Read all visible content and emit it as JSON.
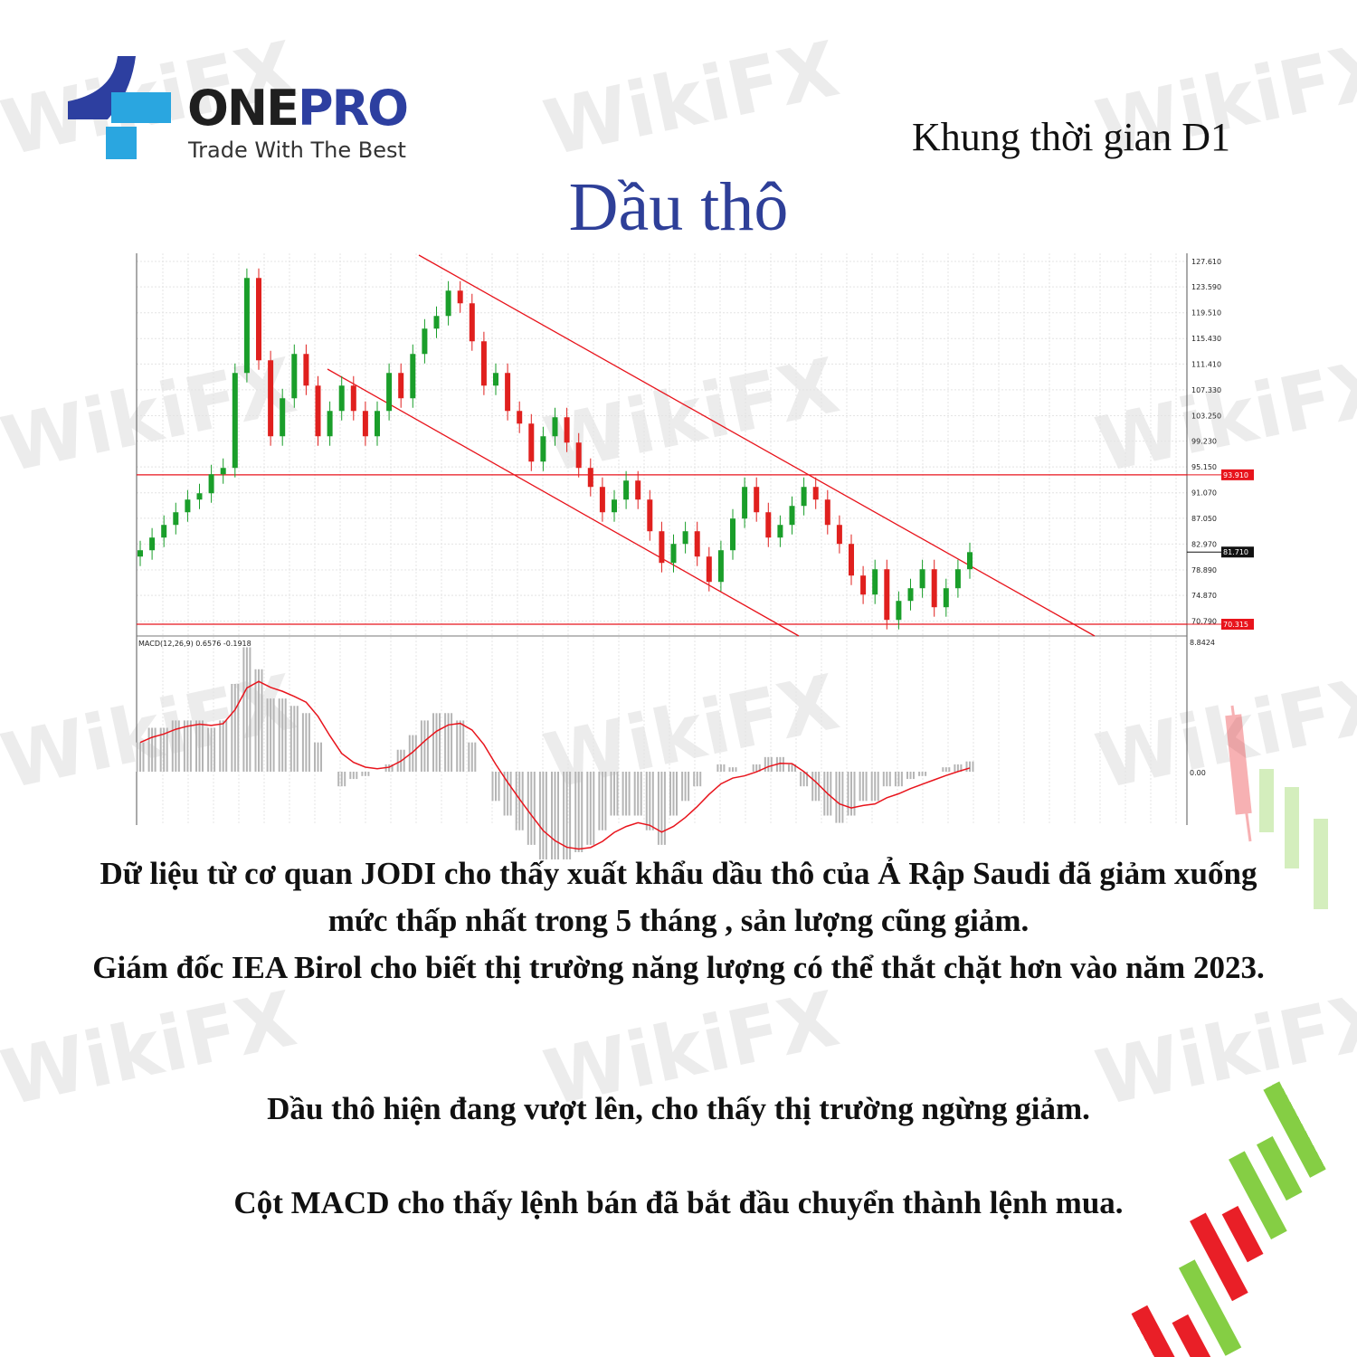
{
  "watermark": "WikiFX",
  "logo": {
    "name_part1": "ONE",
    "name_part2": "PRO",
    "tagline": "Trade With The Best",
    "colors": {
      "dark_blue": "#2d3fa0",
      "light_blue": "#2aa6e0"
    }
  },
  "header": {
    "timeframe": "Khung thời gian D1",
    "title": "Dầu thô"
  },
  "chart_data": {
    "type": "candlestick",
    "price_ticks": [
      "127.610",
      "123.590",
      "119.510",
      "115.430",
      "111.410",
      "107.330",
      "103.250",
      "99.230",
      "95.150",
      "91.070",
      "87.050",
      "82.970",
      "78.890",
      "74.870",
      "70.790"
    ],
    "ylim": [
      70.315,
      127.61
    ],
    "closes": [
      82,
      84,
      86,
      88,
      90,
      91,
      94,
      95,
      110,
      125,
      112,
      100,
      106,
      113,
      108,
      100,
      104,
      108,
      104,
      100,
      104,
      110,
      106,
      113,
      117,
      119,
      123,
      121,
      115,
      108,
      110,
      104,
      102,
      96,
      100,
      103,
      99,
      95,
      92,
      88,
      90,
      93,
      90,
      85,
      80,
      83,
      85,
      81,
      77,
      82,
      87,
      92,
      88,
      84,
      86,
      89,
      92,
      90,
      86,
      83,
      78,
      75,
      79,
      71,
      74,
      76,
      79,
      73,
      76,
      79,
      81.7
    ],
    "horizontal_levels": [
      {
        "value": 93.91,
        "label": "93.910"
      },
      {
        "value": 70.315,
        "label": "70.315"
      }
    ],
    "current_price": "81.710",
    "colors": {
      "up": "#1a9e2a",
      "down": "#e0201e",
      "level": "#e8141c"
    },
    "macd": {
      "label": "MACD(12,26,9) 0.6576 -0.1918",
      "top_tick": "8.8424",
      "zero_tick": "0.00",
      "ylim": [
        -4,
        8.8424
      ],
      "histogram": [
        2,
        3,
        3,
        3.5,
        3.5,
        3.5,
        3,
        3.5,
        6,
        8.5,
        7,
        5,
        5,
        4.5,
        4,
        2,
        0,
        -1,
        -0.5,
        -0.3,
        0,
        0.5,
        1.5,
        2.5,
        3.5,
        4,
        4,
        3.5,
        2,
        0,
        -2,
        -3,
        -4,
        -5,
        -6,
        -6,
        -6,
        -5.5,
        -5,
        -4,
        -3,
        -3,
        -3,
        -4,
        -5,
        -3,
        -2,
        -1,
        0,
        0.5,
        0.3,
        0,
        0.5,
        1,
        1,
        0.5,
        -1,
        -2,
        -3,
        -3.5,
        -3,
        -2,
        -2,
        -1,
        -1,
        -0.5,
        -0.3,
        0,
        0.3,
        0.5,
        0.7
      ]
    }
  },
  "body": {
    "p1": "Dữ liệu từ cơ quan JODI cho thấy xuất khẩu dầu thô của Ả Rập Saudi đã giảm xuống mức thấp nhất trong 5 tháng , sản lượng cũng giảm.",
    "p2": "Giám đốc IEA Birol cho biết thị trường năng lượng có thể thắt chặt hơn vào năm 2023.",
    "p3": "Dầu thô hiện đang vượt lên, cho thấy thị trường ngừng giảm.",
    "p4": "Cột MACD cho thấy lệnh bán đã bắt đầu chuyển thành lệnh mua."
  }
}
